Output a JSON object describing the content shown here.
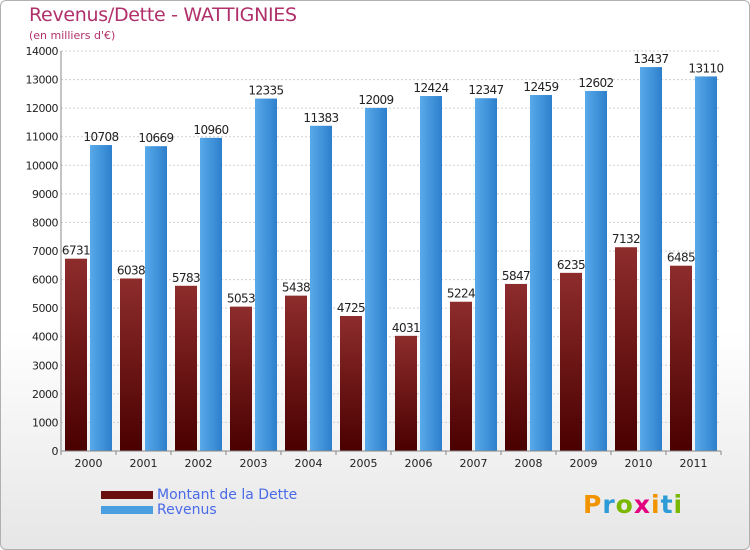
{
  "title": "Revenus/Dette - WATTIGNIES",
  "subtitle": "(en milliers d'€)",
  "logo": {
    "text": "Proxiti",
    "colors": [
      "#f29400",
      "#2d9bd6",
      "#7ab800",
      "#e3007e",
      "#f29400",
      "#2d9bd6",
      "#7ab800"
    ]
  },
  "chart_data": {
    "type": "bar",
    "categories": [
      "2000",
      "2001",
      "2002",
      "2003",
      "2004",
      "2005",
      "2006",
      "2007",
      "2008",
      "2009",
      "2010",
      "2011"
    ],
    "series": [
      {
        "name": "Montant de la Dette",
        "color": "#7a1a1a",
        "values": [
          6731,
          6038,
          5783,
          5053,
          5438,
          4725,
          4031,
          5224,
          5847,
          6235,
          7132,
          6485
        ]
      },
      {
        "name": "Revenus",
        "color": "#4a9fe0",
        "values": [
          10708,
          10669,
          10960,
          12335,
          11383,
          12009,
          12424,
          12347,
          12459,
          12602,
          13437,
          13110
        ]
      }
    ],
    "ylim": [
      0,
      14000
    ],
    "yticks": [
      0,
      1000,
      2000,
      3000,
      4000,
      5000,
      6000,
      7000,
      8000,
      9000,
      10000,
      11000,
      12000,
      13000,
      14000
    ],
    "grid": true,
    "legend": "bottom-left"
  }
}
